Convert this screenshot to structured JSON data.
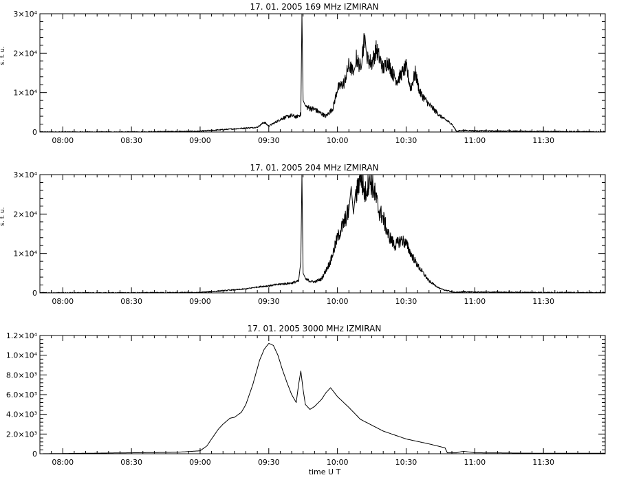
{
  "chart_data": [
    {
      "type": "line",
      "title": "17. 01. 2005   169 MHz   IZMIRAN",
      "ylabel": "s. f. u.",
      "xlabel": "",
      "xlim": [
        "07:50",
        "11:57"
      ],
      "ylim": [
        0,
        30000
      ],
      "x_ticks": [
        "08:00",
        "08:30",
        "09:00",
        "09:30",
        "10:00",
        "10:30",
        "11:00",
        "11:30"
      ],
      "y_ticks": [
        "0",
        "1×10⁴",
        "2×10⁴",
        "3×10⁴"
      ],
      "series": [
        {
          "x": [
            "07:50",
            "08:30",
            "09:00",
            "09:15",
            "09:20",
            "09:25",
            "09:28",
            "09:30",
            "09:33",
            "09:36",
            "09:40",
            "09:42",
            "09:44",
            "09:44.5",
            "09:45",
            "09:46",
            "09:48",
            "09:50",
            "09:52",
            "09:55",
            "09:58",
            "10:00",
            "10:03",
            "10:05",
            "10:07",
            "10:08",
            "10:10",
            "10:12",
            "10:13",
            "10:15",
            "10:17",
            "10:20",
            "10:22",
            "10:24",
            "10:26",
            "10:30",
            "10:32",
            "10:34",
            "10:36",
            "10:40",
            "10:45",
            "10:50",
            "10:52",
            "10:55",
            "11:00",
            "11:30",
            "11:57"
          ],
          "values": [
            0,
            0,
            200,
            800,
            1000,
            1200,
            2500,
            1500,
            2500,
            3500,
            4200,
            3800,
            4500,
            30000,
            8000,
            6500,
            6000,
            5800,
            5000,
            4000,
            6000,
            11000,
            12500,
            17000,
            15000,
            19000,
            16500,
            24500,
            18500,
            17500,
            21000,
            16000,
            18000,
            15000,
            13000,
            16500,
            11000,
            15000,
            10000,
            7000,
            4000,
            2000,
            200,
            400,
            300,
            150,
            50
          ]
        }
      ]
    },
    {
      "type": "line",
      "title": "17. 01. 2005   204 MHz   IZMIRAN",
      "ylabel": "s. f. u.",
      "xlabel": "",
      "xlim": [
        "07:50",
        "11:57"
      ],
      "ylim": [
        0,
        30000
      ],
      "x_ticks": [
        "08:00",
        "08:30",
        "09:00",
        "09:30",
        "10:00",
        "10:30",
        "11:00",
        "11:30"
      ],
      "y_ticks": [
        "0",
        "1×10⁴",
        "2×10⁴",
        "3×10⁴"
      ],
      "series": [
        {
          "x": [
            "07:50",
            "08:30",
            "09:00",
            "09:20",
            "09:25",
            "09:30",
            "09:35",
            "09:40",
            "09:43",
            "09:44",
            "09:44.5",
            "09:45",
            "09:46",
            "09:48",
            "09:50",
            "09:53",
            "09:57",
            "10:00",
            "10:03",
            "10:05",
            "10:06",
            "10:07",
            "10:08",
            "10:10",
            "10:12",
            "10:14",
            "10:16",
            "10:18",
            "10:20",
            "10:22",
            "10:25",
            "10:28",
            "10:30",
            "10:32",
            "10:35",
            "10:40",
            "10:45",
            "10:50",
            "10:52",
            "10:55",
            "11:00",
            "11:30",
            "11:57"
          ],
          "values": [
            0,
            0,
            100,
            1000,
            1500,
            1800,
            2200,
            2500,
            3000,
            8000,
            30000,
            5000,
            3500,
            3000,
            2800,
            3500,
            8000,
            14000,
            18000,
            21000,
            27000,
            20000,
            24000,
            30000,
            25000,
            29000,
            26000,
            21000,
            19000,
            15000,
            12000,
            13500,
            12500,
            10000,
            7000,
            3000,
            1000,
            300,
            100,
            300,
            200,
            100,
            50
          ]
        }
      ]
    },
    {
      "type": "line",
      "title": "17. 01. 2005   3000 MHz   IZMIRAN",
      "ylabel": "",
      "xlabel": "time  U T",
      "xlim": [
        "07:50",
        "11:57"
      ],
      "ylim": [
        0,
        12000
      ],
      "x_ticks": [
        "08:00",
        "08:30",
        "09:00",
        "09:30",
        "10:00",
        "10:30",
        "11:00",
        "11:30"
      ],
      "y_ticks": [
        "0",
        "2.0×10³",
        "4.0×10³",
        "6.0×10³",
        "8.0×10³",
        "1.0×10⁴",
        "1.2×10⁴"
      ],
      "series": [
        {
          "x": [
            "07:50",
            "08:30",
            "08:50",
            "09:00",
            "09:03",
            "09:05",
            "09:08",
            "09:10",
            "09:13",
            "09:15",
            "09:18",
            "09:20",
            "09:23",
            "09:26",
            "09:28",
            "09:30",
            "09:32",
            "09:34",
            "09:36",
            "09:38",
            "09:40",
            "09:42",
            "09:43",
            "09:44",
            "09:45",
            "09:46",
            "09:48",
            "09:50",
            "09:53",
            "09:55",
            "09:57",
            "10:00",
            "10:05",
            "10:10",
            "10:20",
            "10:30",
            "10:40",
            "10:47",
            "10:48",
            "10:52",
            "10:55",
            "11:00",
            "11:30",
            "11:57"
          ],
          "values": [
            0,
            100,
            150,
            300,
            800,
            1500,
            2500,
            3000,
            3600,
            3700,
            4200,
            5000,
            7000,
            9500,
            10600,
            11200,
            11000,
            10000,
            8500,
            7200,
            6000,
            5200,
            7000,
            8400,
            6500,
            5000,
            4500,
            4800,
            5500,
            6200,
            6700,
            5800,
            4700,
            3500,
            2300,
            1500,
            1000,
            600,
            100,
            100,
            250,
            100,
            50,
            50
          ]
        }
      ]
    }
  ]
}
